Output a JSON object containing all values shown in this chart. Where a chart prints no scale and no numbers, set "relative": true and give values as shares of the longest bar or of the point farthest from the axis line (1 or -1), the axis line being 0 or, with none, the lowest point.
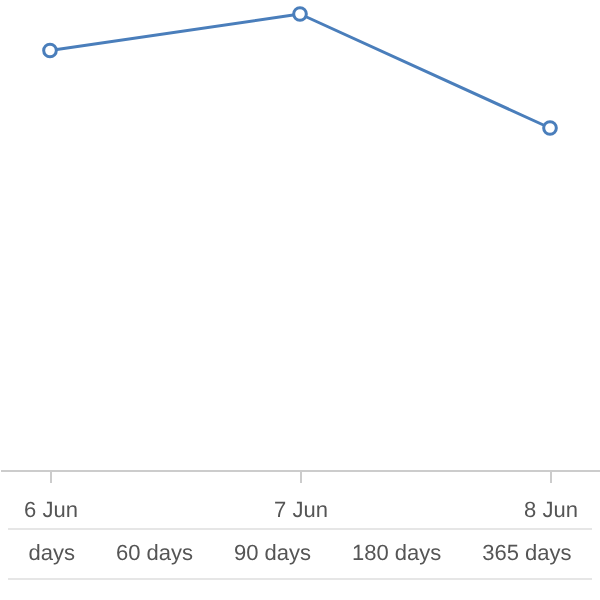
{
  "chart_data": {
    "type": "line",
    "relative": true,
    "categories": [
      "6 Jun",
      "7 Jun",
      "8 Jun"
    ],
    "series": [
      {
        "color": "#4a7ebb",
        "values": [
          0.92,
          1,
          0.75
        ]
      }
    ],
    "marker": "circle",
    "annotations": [
      "days",
      "60 days",
      "90 days",
      "180 days",
      "365 days"
    ]
  }
}
